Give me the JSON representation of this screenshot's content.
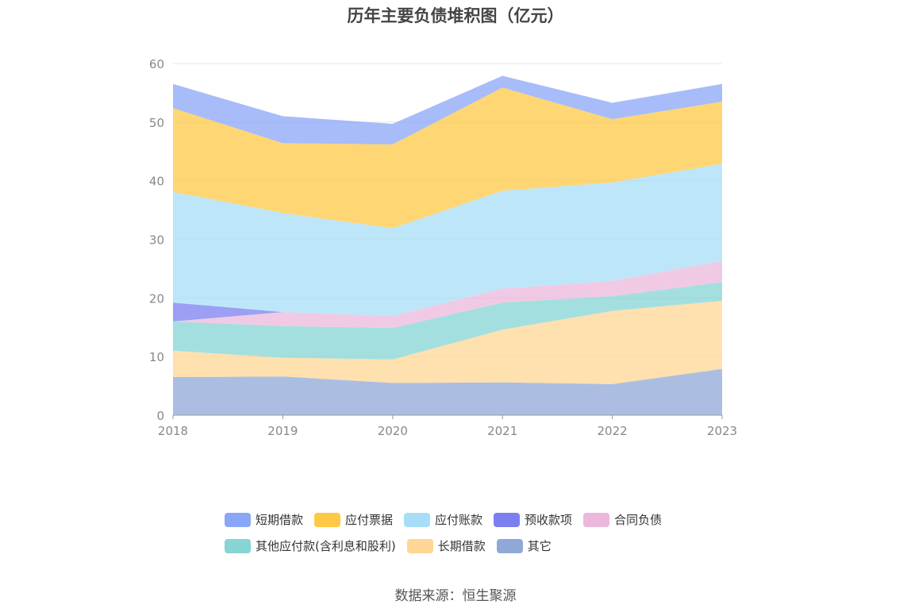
{
  "chart_data": {
    "type": "area",
    "stacked": true,
    "title": "历年主要负债堆积图（亿元）",
    "x": [
      "2018",
      "2019",
      "2020",
      "2021",
      "2022",
      "2023"
    ],
    "yticks": [
      "0",
      "10",
      "20",
      "30",
      "40",
      "50",
      "60"
    ],
    "ylim": [
      0,
      60
    ],
    "grid": true,
    "legend_position": "bottom",
    "series": [
      {
        "name": "其它",
        "color": "#8fa8d8",
        "values": [
          6.5,
          6.6,
          5.5,
          5.6,
          5.3,
          7.9
        ]
      },
      {
        "name": "长期借款",
        "color": "#ffd694",
        "values": [
          4.5,
          3.2,
          4.0,
          9.0,
          12.5,
          11.6
        ]
      },
      {
        "name": "其他应付款(含利息和股利)",
        "color": "#86d4d4",
        "values": [
          5.0,
          5.4,
          5.4,
          4.6,
          2.5,
          3.2
        ]
      },
      {
        "name": "合同负债",
        "color": "#ebb8db",
        "values": [
          0.0,
          2.4,
          2.0,
          2.4,
          2.6,
          3.6
        ]
      },
      {
        "name": "预收款项",
        "color": "#7b7ff0",
        "values": [
          3.2,
          0.0,
          0.0,
          0.0,
          0.0,
          0.0
        ]
      },
      {
        "name": "应付账款",
        "color": "#a8ddf7",
        "values": [
          18.9,
          16.9,
          15.0,
          16.7,
          16.8,
          16.6
        ]
      },
      {
        "name": "应付票据",
        "color": "#ffc845",
        "values": [
          14.3,
          11.9,
          14.3,
          17.6,
          10.8,
          10.6
        ]
      },
      {
        "name": "短期借款",
        "color": "#8aa6f7",
        "values": [
          4.1,
          4.6,
          3.5,
          2.0,
          2.8,
          3.0
        ]
      }
    ]
  },
  "legend_rows": [
    [
      {
        "label": "短期借款",
        "color": "#8aa6f7"
      },
      {
        "label": "应付票据",
        "color": "#ffc845"
      },
      {
        "label": "应付账款",
        "color": "#a8ddf7"
      },
      {
        "label": "预收款项",
        "color": "#7b7ff0"
      },
      {
        "label": "合同负债",
        "color": "#ebb8db"
      }
    ],
    [
      {
        "label": "其他应付款(含利息和股利)",
        "color": "#86d4d4"
      },
      {
        "label": "长期借款",
        "color": "#ffd694"
      },
      {
        "label": "其它",
        "color": "#8fa8d8"
      }
    ]
  ],
  "source": "数据来源：恒生聚源"
}
